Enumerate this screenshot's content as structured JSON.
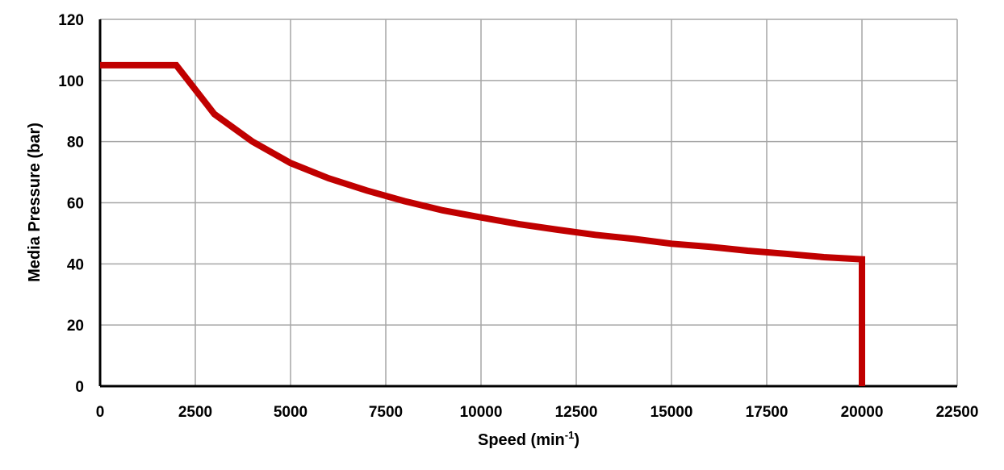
{
  "chart_data": {
    "type": "line",
    "xlabel_text": "Speed (min",
    "xlabel_sup": "-1",
    "xlabel_close": ")",
    "ylabel": "Media Pressure (bar)",
    "xlim": [
      0,
      22500
    ],
    "ylim": [
      0,
      120
    ],
    "x_ticks": [
      0,
      2500,
      5000,
      7500,
      10000,
      12500,
      15000,
      17500,
      20000,
      22500
    ],
    "y_ticks": [
      0,
      20,
      40,
      60,
      80,
      100,
      120
    ],
    "grid": true,
    "line_color": "#C00000",
    "grid_color": "#A6A6A6",
    "series": [
      {
        "x": [
          0,
          2000,
          3000,
          4000,
          5000,
          6000,
          7000,
          8000,
          9000,
          10000,
          11000,
          12000,
          13000,
          14000,
          15000,
          16000,
          17000,
          18000,
          19000,
          20000,
          20000
        ],
        "y": [
          105,
          105,
          89,
          80,
          73,
          68,
          64,
          60.5,
          57.5,
          55.2,
          53,
          51.2,
          49.5,
          48.2,
          46.6,
          45.6,
          44.3,
          43.3,
          42.2,
          41.5,
          0
        ]
      }
    ]
  }
}
